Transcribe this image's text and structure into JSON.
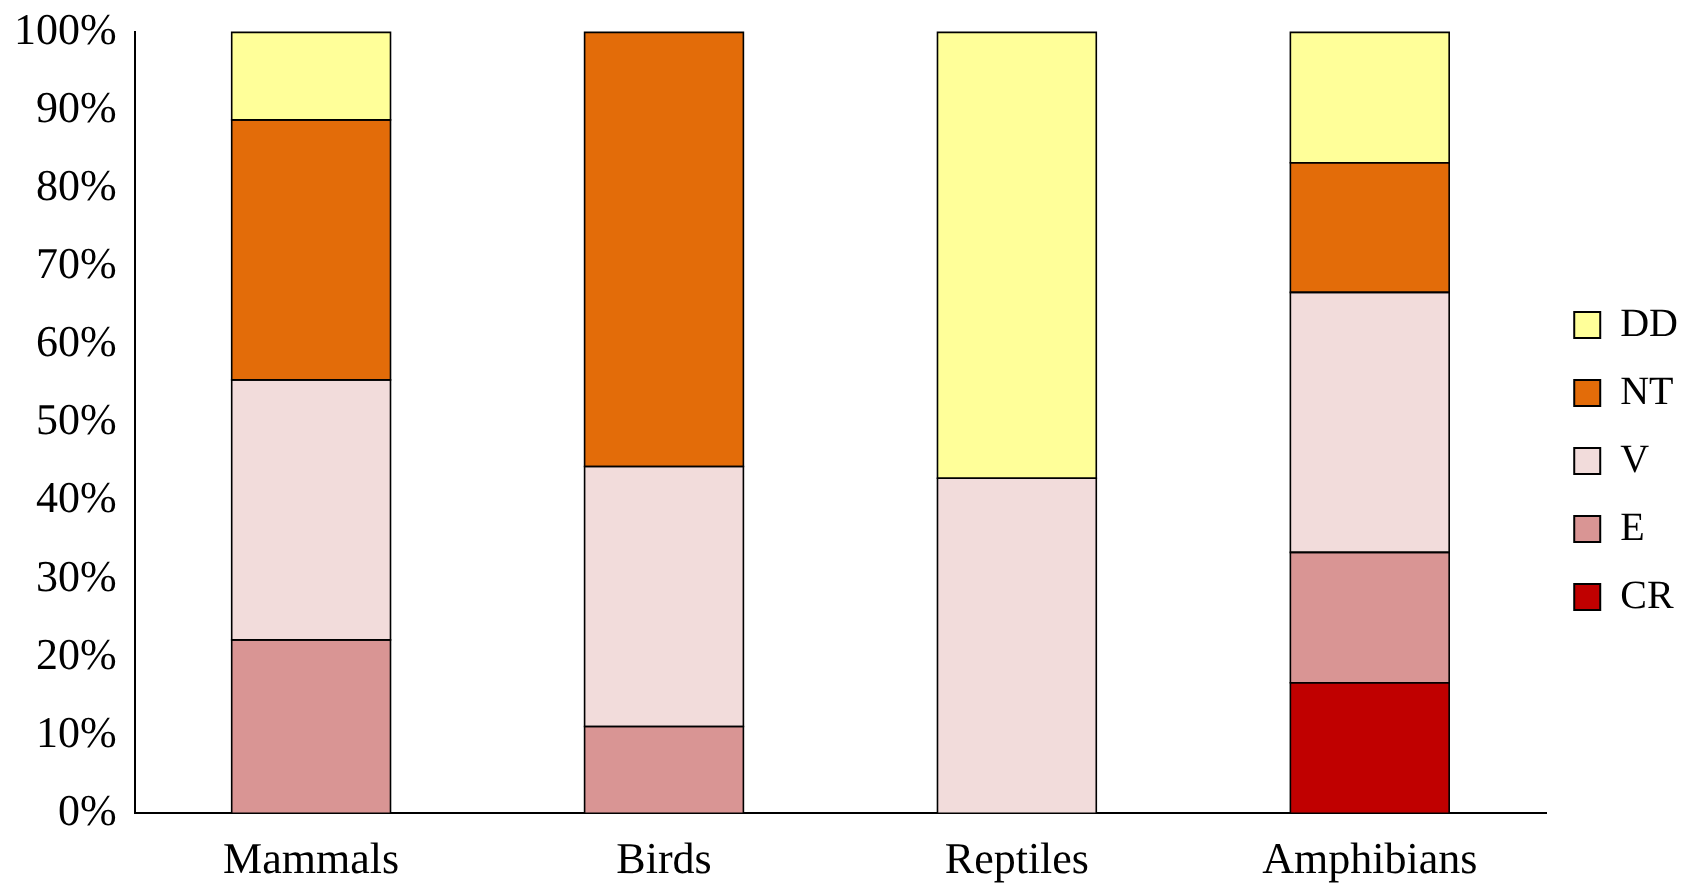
{
  "chart_data": {
    "type": "bar",
    "stacked": true,
    "categories": [
      "Mammals",
      "Birds",
      "Reptiles",
      "Amphibians"
    ],
    "series": [
      {
        "name": "CR",
        "color": "#c00000",
        "values": [
          null,
          null,
          null,
          16.7
        ]
      },
      {
        "name": "E",
        "color": "#d99594",
        "values": [
          22.2,
          11.1,
          null,
          16.7
        ]
      },
      {
        "name": "V",
        "color": "#f2dcdb",
        "values": [
          33.3,
          33.3,
          42.9,
          33.3
        ]
      },
      {
        "name": "NT",
        "color": "#e36c09",
        "values": [
          33.3,
          55.6,
          null,
          16.6
        ]
      },
      {
        "name": "DD",
        "color": "#ffff99",
        "values": [
          11.2,
          null,
          57.1,
          16.7
        ]
      }
    ],
    "ylim": [
      0,
      100
    ],
    "yticks": [
      {
        "value": 0,
        "label": "0%"
      },
      {
        "value": 10,
        "label": "10%"
      },
      {
        "value": 20,
        "label": "20%"
      },
      {
        "value": 30,
        "label": "30%"
      },
      {
        "value": 40,
        "label": "40%"
      },
      {
        "value": 50,
        "label": "50%"
      },
      {
        "value": 60,
        "label": "60%"
      },
      {
        "value": 70,
        "label": "70%"
      },
      {
        "value": 80,
        "label": "80%"
      },
      {
        "value": 90,
        "label": "90%"
      },
      {
        "value": 100,
        "label": "100%"
      }
    ],
    "grid": false,
    "legend": "right"
  }
}
